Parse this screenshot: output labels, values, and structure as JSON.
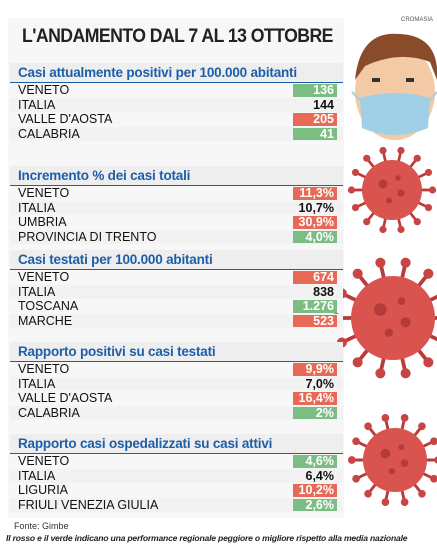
{
  "header": {
    "title": "L'ANDAMENTO DAL 7 AL 13 OTTOBRE",
    "credit": "CROMASIA"
  },
  "sections": [
    {
      "title": "Casi attualmente positivi per 100.000 abitanti",
      "rows": [
        {
          "region": "VENETO",
          "value": "136",
          "color": "green"
        },
        {
          "region": "ITALIA",
          "value": "144",
          "color": "none"
        },
        {
          "region": "VALLE D'AOSTA",
          "value": "205",
          "color": "red"
        },
        {
          "region": "CALABRIA",
          "value": "41",
          "color": "green"
        }
      ]
    },
    {
      "title": "Incremento % dei casi totali",
      "rows": [
        {
          "region": "VENETO",
          "value": "11,3%",
          "color": "red"
        },
        {
          "region": "ITALIA",
          "value": "10,7%",
          "color": "none"
        },
        {
          "region": "UMBRIA",
          "value": "30,9%",
          "color": "red"
        },
        {
          "region": "PROVINCIA DI TRENTO",
          "value": "4,0%",
          "color": "green"
        }
      ]
    },
    {
      "title": "Casi testati per 100.000 abitanti",
      "rows": [
        {
          "region": "VENETO",
          "value": "674",
          "color": "red"
        },
        {
          "region": "ITALIA",
          "value": "838",
          "color": "none"
        },
        {
          "region": "TOSCANA",
          "value": "1.276",
          "color": "green"
        },
        {
          "region": "MARCHE",
          "value": "523",
          "color": "red"
        }
      ]
    },
    {
      "title": "Rapporto positivi su casi testati",
      "rows": [
        {
          "region": "VENETO",
          "value": "9,9%",
          "color": "red"
        },
        {
          "region": "ITALIA",
          "value": "7,0%",
          "color": "none"
        },
        {
          "region": "VALLE D'AOSTA",
          "value": "16,4%",
          "color": "red"
        },
        {
          "region": "CALABRIA",
          "value": "2%",
          "color": "green"
        }
      ]
    },
    {
      "title": "Rapporto casi ospedalizzati su casi attivi",
      "rows": [
        {
          "region": "VENETO",
          "value": "4,6%",
          "color": "green"
        },
        {
          "region": "ITALIA",
          "value": "6,4%",
          "color": "none"
        },
        {
          "region": "LIGURIA",
          "value": "10,2%",
          "color": "red"
        },
        {
          "region": "FRIULI VENEZIA GIULIA",
          "value": "2,6%",
          "color": "green"
        }
      ]
    }
  ],
  "footer": {
    "source": "Fonte: Gimbe",
    "note": "Il rosso e il verde indicano una performance regionale peggiore o migliore rispetto alla media nazionale"
  }
}
